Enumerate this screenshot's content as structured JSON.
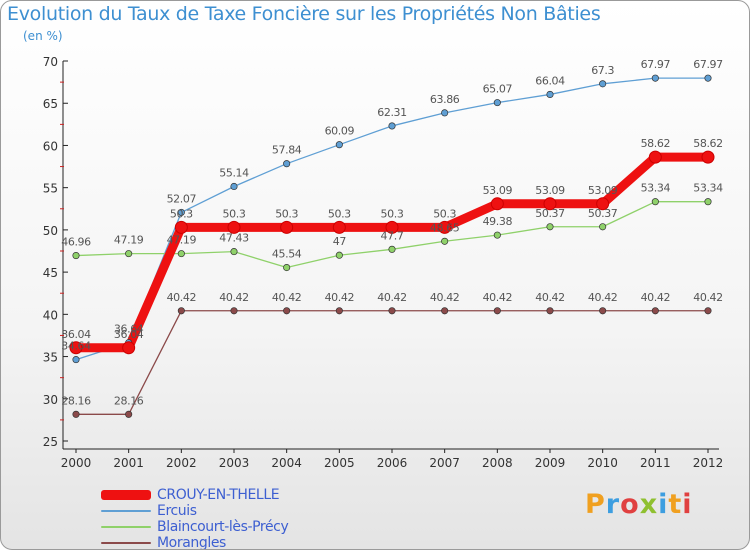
{
  "title": "Evolution du Taux de Taxe Foncière sur les Propriétés Non Bâties",
  "unit_label": "(en %)",
  "logo": "Proxiti",
  "chart_data": {
    "type": "line",
    "title": "Evolution du Taux de Taxe Foncière sur les Propriétés Non Bâties",
    "ylabel": "(en %)",
    "xlabel": "",
    "ylim": [
      25,
      70
    ],
    "yticks": [
      25,
      30,
      35,
      40,
      45,
      50,
      55,
      60,
      65,
      70
    ],
    "categories": [
      "2000",
      "2001",
      "2002",
      "2003",
      "2004",
      "2005",
      "2006",
      "2007",
      "2008",
      "2009",
      "2010",
      "2011",
      "2012"
    ],
    "series": [
      {
        "name": "Ercuis",
        "color": "#5f9fd4",
        "values": [
          34.64,
          36.64,
          52.07,
          55.14,
          57.84,
          60.09,
          62.31,
          63.86,
          65.07,
          66.04,
          67.3,
          67.97,
          67.97
        ],
        "labels": [
          "34.64",
          "36.64",
          "52.07",
          "55.14",
          "57.84",
          "60.09",
          "62.31",
          "63.86",
          "65.07",
          "66.04",
          "67.3",
          "67.97",
          "67.97"
        ]
      },
      {
        "name": "Blaincourt-lès-Précy",
        "color": "#8fd16a",
        "values": [
          46.96,
          47.19,
          47.19,
          47.43,
          45.54,
          47,
          47.7,
          48.65,
          49.38,
          50.37,
          50.37,
          53.34,
          53.34
        ],
        "labels": [
          "46.96",
          "47.19",
          "47.19",
          "47.43",
          "45.54",
          "47",
          "47.7",
          "48.65",
          "49.38",
          "50.37",
          "50.37",
          "53.34",
          "53.34"
        ]
      },
      {
        "name": "Morangles",
        "color": "#8b4a4a",
        "values": [
          28.16,
          28.16,
          40.42,
          40.42,
          40.42,
          40.42,
          40.42,
          40.42,
          40.42,
          40.42,
          40.42,
          40.42,
          40.42
        ],
        "labels": [
          "28.16",
          "28.16",
          "40.42",
          "40.42",
          "40.42",
          "40.42",
          "40.42",
          "40.42",
          "40.42",
          "40.42",
          "40.42",
          "40.42",
          "40.42"
        ]
      },
      {
        "name": "CROUY-EN-THELLE",
        "color": "#ee1111",
        "values": [
          36.04,
          36.04,
          50.3,
          50.3,
          50.3,
          50.3,
          50.3,
          50.3,
          53.09,
          53.09,
          53.09,
          58.62,
          58.62
        ],
        "labels": [
          "36.04",
          "36.04",
          "50.3",
          "50.3",
          "50.3",
          "50.3",
          "50.3",
          "50.3",
          "53.09",
          "53.09",
          "53.09",
          "58.62",
          "58.62"
        ]
      }
    ],
    "legend": [
      "CROUY-EN-THELLE",
      "Ercuis",
      "Blaincourt-lès-Précy",
      "Morangles"
    ],
    "legend_placement": "bottom-left",
    "grid": false
  }
}
